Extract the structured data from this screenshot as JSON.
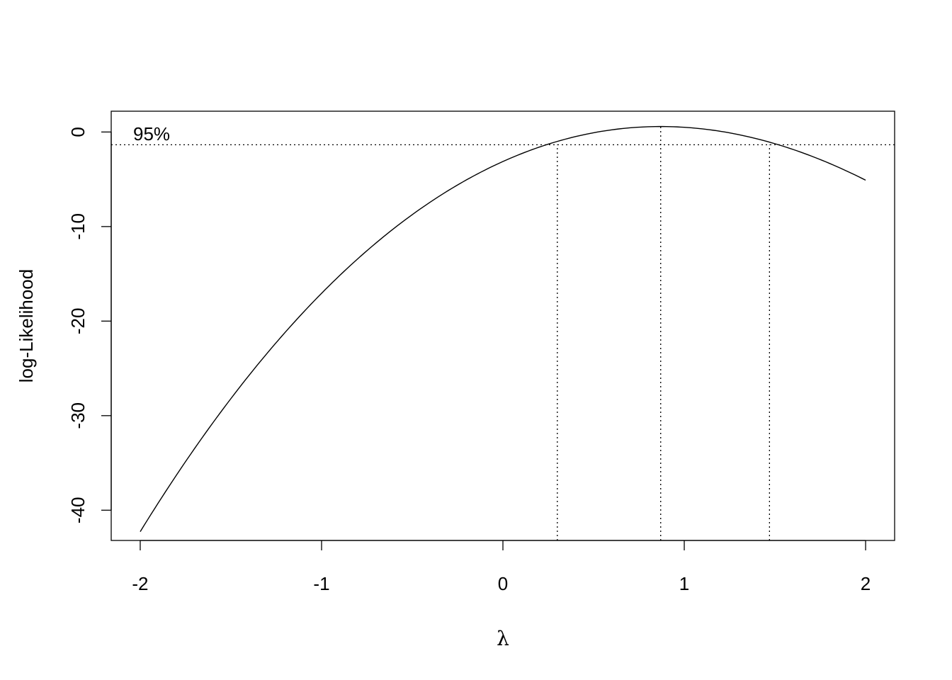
{
  "chart_data": {
    "type": "line",
    "xlabel": "λ",
    "ylabel": "log-Likelihood",
    "xlim": [
      -2.16,
      2.16
    ],
    "ylim": [
      -43.2,
      2.2
    ],
    "x_ticks": [
      -2,
      -1,
      0,
      1,
      2
    ],
    "x_tick_labels": [
      "-2",
      "-1",
      "0",
      "1",
      "2"
    ],
    "y_ticks": [
      -40,
      -30,
      -20,
      -10,
      0
    ],
    "y_tick_labels": [
      "-40",
      "-30",
      "-20",
      "-10",
      "0"
    ],
    "grid": false,
    "series": [
      {
        "x": [
          -2.0,
          -1.8,
          -1.6,
          -1.4,
          -1.2,
          -1.0,
          -0.8,
          -0.6,
          -0.4,
          -0.2,
          0.0,
          0.2,
          0.4,
          0.6,
          0.8,
          0.87,
          1.0,
          1.2,
          1.4,
          1.6,
          1.8,
          2.0
        ],
        "y": [
          -41.6,
          -35.3,
          -29.6,
          -24.3,
          -19.4,
          -14.9,
          -11.0,
          -7.6,
          -4.8,
          -2.6,
          -1.1,
          0.0,
          0.6,
          0.55,
          0.1,
          0.0,
          -0.8,
          -2.3,
          -4.1,
          -6.2,
          -3.8,
          -5.9
        ]
      }
    ],
    "reference_lines": {
      "ci_level_label": "95%",
      "horizontal_y": -1.35,
      "vertical_x": [
        0.3,
        0.87,
        1.47
      ],
      "style": "dotted"
    }
  }
}
